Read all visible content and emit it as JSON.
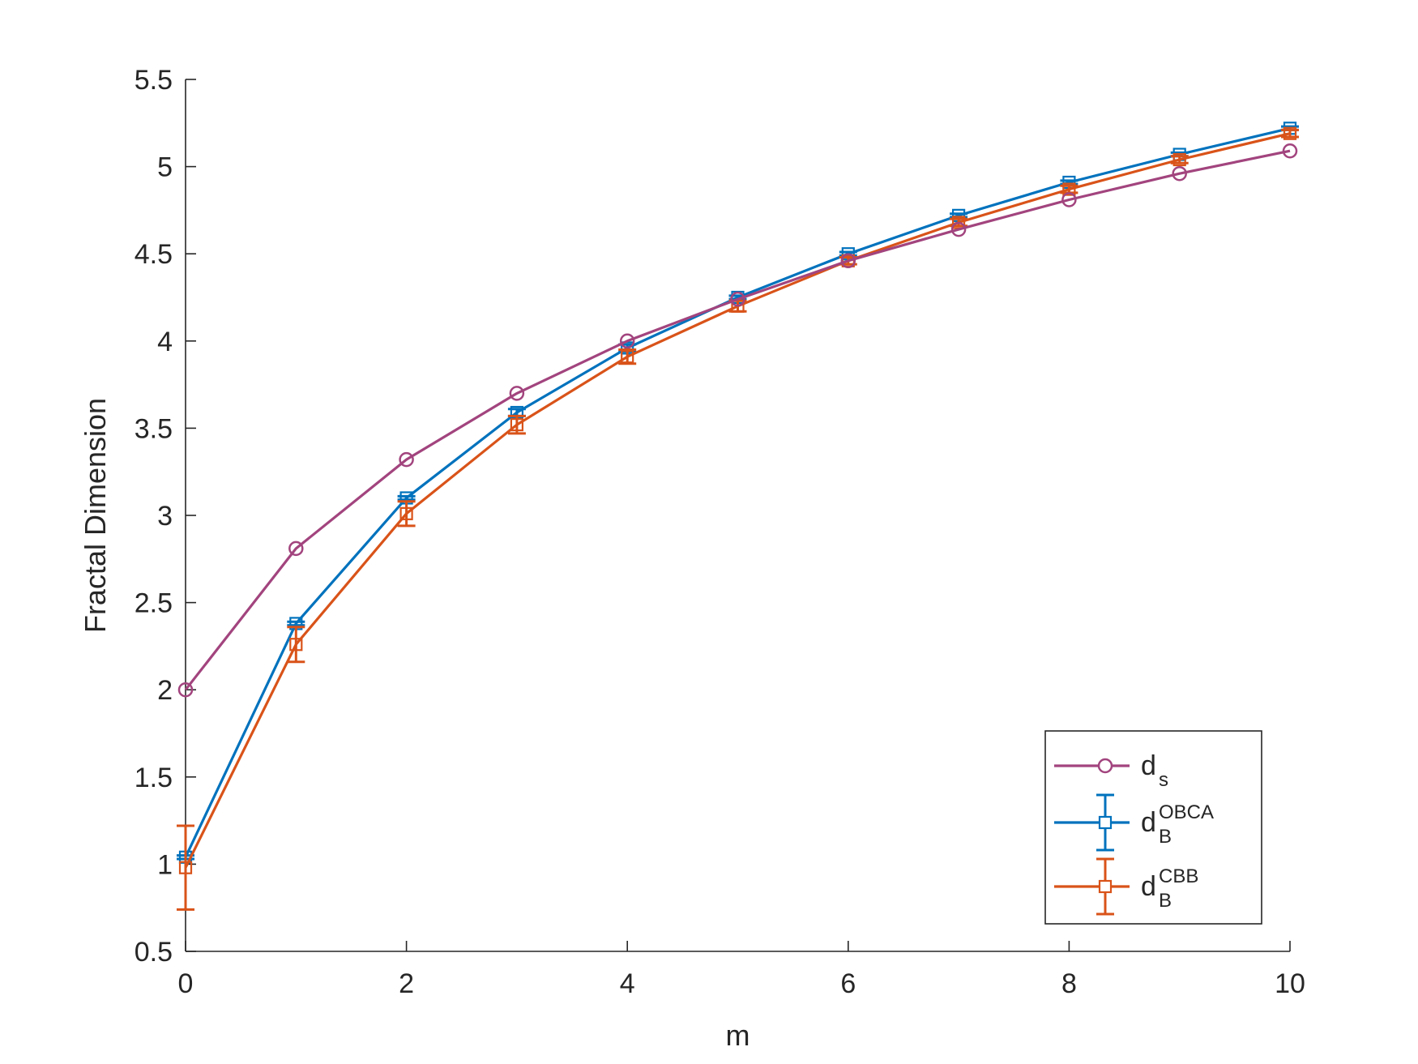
{
  "chart_data": {
    "type": "line",
    "xlabel": "m",
    "ylabel": "Fractal Dimension",
    "xlim": [
      0,
      10
    ],
    "ylim": [
      0.5,
      5.5
    ],
    "xticks": [
      0,
      2,
      4,
      6,
      8,
      10
    ],
    "yticks": [
      0.5,
      1,
      1.5,
      2,
      2.5,
      3,
      3.5,
      4,
      4.5,
      5,
      5.5
    ],
    "x": [
      0,
      1,
      2,
      3,
      4,
      5,
      6,
      7,
      8,
      9,
      10
    ],
    "grid": false,
    "legend_position": "bottom-right",
    "series": [
      {
        "key": "ds",
        "legend_main": "d",
        "legend_sub": "s",
        "legend_sup": "",
        "color": "#A2447E",
        "marker": "circle",
        "y": [
          2.0,
          2.81,
          3.32,
          3.7,
          4.0,
          4.24,
          4.46,
          4.64,
          4.81,
          4.96,
          5.09
        ],
        "err": null
      },
      {
        "key": "obca",
        "legend_main": "d",
        "legend_sub": "B",
        "legend_sup": "OBCA",
        "color": "#0072BD",
        "marker": "square",
        "y": [
          1.04,
          2.38,
          3.1,
          3.59,
          3.96,
          4.25,
          4.5,
          4.72,
          4.91,
          5.07,
          5.22
        ],
        "err": [
          0.01,
          0.01,
          0.01,
          0.02,
          0.02,
          0.01,
          0.01,
          0.01,
          0.01,
          0.01,
          0.01
        ]
      },
      {
        "key": "cbb",
        "legend_main": "d",
        "legend_sub": "B",
        "legend_sup": "CBB",
        "color": "#D95319",
        "marker": "square",
        "y": [
          0.98,
          2.26,
          3.01,
          3.52,
          3.91,
          4.2,
          4.46,
          4.68,
          4.87,
          5.04,
          5.19
        ],
        "err": [
          0.24,
          0.1,
          0.07,
          0.05,
          0.04,
          0.03,
          0.02,
          0.02,
          0.02,
          0.02,
          0.02
        ]
      }
    ]
  }
}
